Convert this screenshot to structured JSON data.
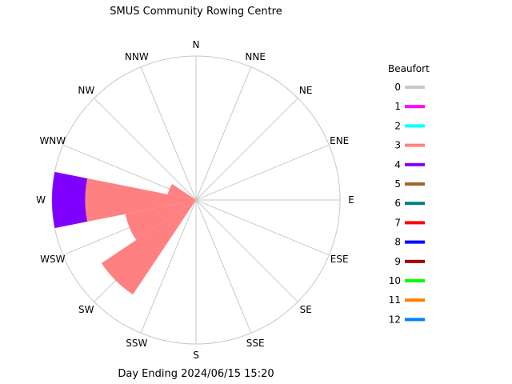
{
  "chart_data": {
    "type": "windrose",
    "title": "SMUS Community Rowing Centre",
    "footer": "Day Ending 2024/06/15 15:20",
    "directions": [
      "N",
      "NNE",
      "NE",
      "ENE",
      "E",
      "ESE",
      "SE",
      "SSE",
      "S",
      "SSW",
      "SW",
      "WSW",
      "W",
      "WNW",
      "NW",
      "NNW"
    ],
    "legend": {
      "title": "Beaufort",
      "items": [
        {
          "label": "0",
          "color": "#c8c8c8"
        },
        {
          "label": "1",
          "color": "#ff00ff"
        },
        {
          "label": "2",
          "color": "#00ffff"
        },
        {
          "label": "3",
          "color": "#ff8080"
        },
        {
          "label": "4",
          "color": "#8000ff"
        },
        {
          "label": "5",
          "color": "#a0642d"
        },
        {
          "label": "6",
          "color": "#008080"
        },
        {
          "label": "7",
          "color": "#ff0000"
        },
        {
          "label": "8",
          "color": "#0000ff"
        },
        {
          "label": "9",
          "color": "#a00000"
        },
        {
          "label": "10",
          "color": "#00ff00"
        },
        {
          "label": "11",
          "color": "#ff8000"
        },
        {
          "label": "12",
          "color": "#0080ff"
        }
      ]
    },
    "series": [
      {
        "direction": "W",
        "segments": [
          {
            "beaufort": "3",
            "fraction": 0.77
          },
          {
            "beaufort": "4",
            "fraction": 0.23
          }
        ]
      },
      {
        "direction": "WSW",
        "segments": [
          {
            "beaufort": "3",
            "fraction": 0.5
          }
        ]
      },
      {
        "direction": "SW",
        "segments": [
          {
            "beaufort": "3",
            "fraction": 0.79
          }
        ]
      },
      {
        "direction": "WNW",
        "segments": [
          {
            "beaufort": "3",
            "fraction": 0.2
          }
        ]
      }
    ]
  }
}
